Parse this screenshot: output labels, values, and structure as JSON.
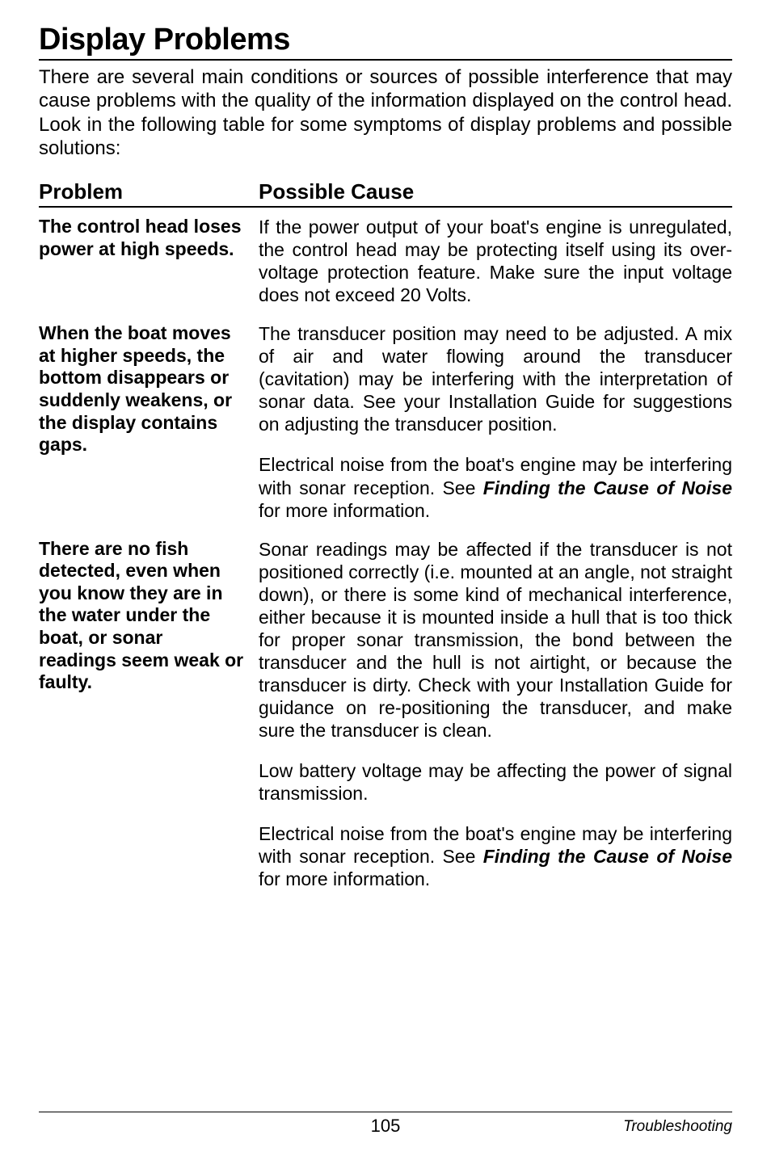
{
  "title": "Display Problems",
  "intro": "There are several main conditions or sources of possible interference that may cause problems with the quality of the information displayed on the control head. Look in the following table for some symptoms of display problems and possible solutions:",
  "columns": {
    "problem": "Problem",
    "cause": "Possible Cause"
  },
  "rows": [
    {
      "problem": "The control head loses power at high speeds.",
      "causes": [
        {
          "text": "If the power output of your boat's engine is unregulated, the control head may be protecting itself using its over-voltage protection feature. Make sure the input voltage does not exceed 20 Volts."
        }
      ]
    },
    {
      "problem": "When the boat moves at higher speeds, the bottom disappears or suddenly weakens, or the display contains gaps.",
      "causes": [
        {
          "text": "The transducer position may need to be adjusted. A mix of air and water flowing around the transducer (cavitation) may be interfering with the interpretation of sonar data. See your Installation Guide for suggestions on adjusting the transducer position."
        },
        {
          "pre": "Electrical noise from the boat's engine may be interfering with sonar reception. See ",
          "ital": "Finding the Cause of Noise",
          "post": " for more information."
        }
      ]
    },
    {
      "problem": "There are no fish detected, even when you know they are in the water under the boat, or sonar readings seem weak or faulty.",
      "causes": [
        {
          "text": "Sonar readings may be affected if the transducer is not positioned correctly (i.e. mounted at an angle, not straight down), or there is some kind of mechanical interference, either because it is mounted inside a hull that is too thick for proper sonar transmission, the bond between the transducer and the hull is not airtight, or because the transducer is dirty. Check with your Installation Guide for guidance on re-positioning the transducer, and make sure the transducer is clean."
        },
        {
          "text": "Low battery voltage may be affecting the power of signal transmission."
        },
        {
          "pre": "Electrical noise from the boat's engine may be interfering with sonar reception. See ",
          "ital": "Finding the Cause of Noise",
          "post": " for more information."
        }
      ]
    }
  ],
  "footer": {
    "page": "105",
    "section": "Troubleshooting"
  }
}
